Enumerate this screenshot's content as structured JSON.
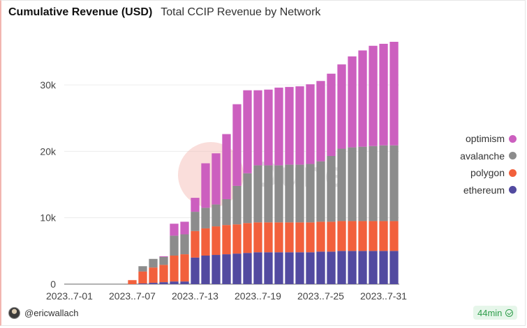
{
  "header": {
    "title": "Cumulative Revenue (USD)",
    "subtitle": "Total CCIP Revenue by Network"
  },
  "footer": {
    "username": "@ericwallach",
    "refresh_badge": "44min"
  },
  "watermark": {
    "text": "Dune"
  },
  "legend": [
    {
      "label": "optimism",
      "color": "#cc5fbf"
    },
    {
      "label": "avalanche",
      "color": "#8c8c8c"
    },
    {
      "label": "polygon",
      "color": "#f2603c"
    },
    {
      "label": "ethereum",
      "color": "#524aa0"
    }
  ],
  "chart_data": {
    "type": "bar",
    "stacked": true,
    "title": "Cumulative Revenue (USD)",
    "subtitle": "Total CCIP Revenue by Network",
    "xlabel": "",
    "ylabel": "",
    "ylim": [
      0,
      37000
    ],
    "yticks": [
      0,
      10000,
      20000,
      30000
    ],
    "ytick_labels": [
      "0",
      "10k",
      "20k",
      "30k"
    ],
    "xtick_labels": [
      "2023..7-01",
      "2023..7-07",
      "2023..7-13",
      "2023..7-19",
      "2023..7-25",
      "2023..7-31"
    ],
    "xtick_positions": [
      1,
      7,
      13,
      19,
      25,
      31
    ],
    "categories": [
      "2023-07-01",
      "2023-07-02",
      "2023-07-03",
      "2023-07-04",
      "2023-07-05",
      "2023-07-06",
      "2023-07-07",
      "2023-07-08",
      "2023-07-09",
      "2023-07-10",
      "2023-07-11",
      "2023-07-12",
      "2023-07-13",
      "2023-07-14",
      "2023-07-15",
      "2023-07-16",
      "2023-07-17",
      "2023-07-18",
      "2023-07-19",
      "2023-07-20",
      "2023-07-21",
      "2023-07-22",
      "2023-07-23",
      "2023-07-24",
      "2023-07-25",
      "2023-07-26",
      "2023-07-27",
      "2023-07-28",
      "2023-07-29",
      "2023-07-30",
      "2023-07-31",
      "2023-08-01"
    ],
    "grid": true,
    "legend_position": "right",
    "series": [
      {
        "name": "ethereum",
        "color": "#524aa0",
        "values": [
          0,
          0,
          0,
          0,
          0,
          0,
          0,
          100,
          200,
          300,
          400,
          400,
          4000,
          4300,
          4400,
          4500,
          4600,
          4700,
          4800,
          4800,
          4800,
          4800,
          4800,
          4800,
          4900,
          4900,
          5000,
          5000,
          5000,
          5000,
          5000,
          5000
        ]
      },
      {
        "name": "polygon",
        "color": "#f2603c",
        "values": [
          0,
          0,
          0,
          0,
          0,
          0,
          600,
          1800,
          2300,
          2600,
          3900,
          4100,
          4000,
          4100,
          4300,
          4400,
          4400,
          4500,
          4500,
          4500,
          4500,
          4500,
          4500,
          4500,
          4500,
          4500,
          4500,
          4500,
          4500,
          4500,
          4500,
          4500
        ]
      },
      {
        "name": "avalanche",
        "color": "#8c8c8c",
        "values": [
          0,
          0,
          0,
          0,
          0,
          0,
          0,
          800,
          1300,
          1200,
          3000,
          3000,
          2900,
          3100,
          3300,
          3900,
          5800,
          7500,
          8600,
          8600,
          8600,
          8700,
          8700,
          8800,
          9100,
          9900,
          10900,
          11100,
          11200,
          11300,
          11400,
          11400
        ]
      },
      {
        "name": "optimism",
        "color": "#cc5fbf",
        "values": [
          0,
          0,
          0,
          0,
          0,
          0,
          0,
          0,
          0,
          100,
          1800,
          1900,
          2100,
          6700,
          7700,
          9800,
          12300,
          12500,
          11300,
          11400,
          11700,
          11700,
          11800,
          12000,
          12100,
          12400,
          12700,
          13700,
          14500,
          15100,
          15300,
          15600
        ]
      }
    ]
  }
}
